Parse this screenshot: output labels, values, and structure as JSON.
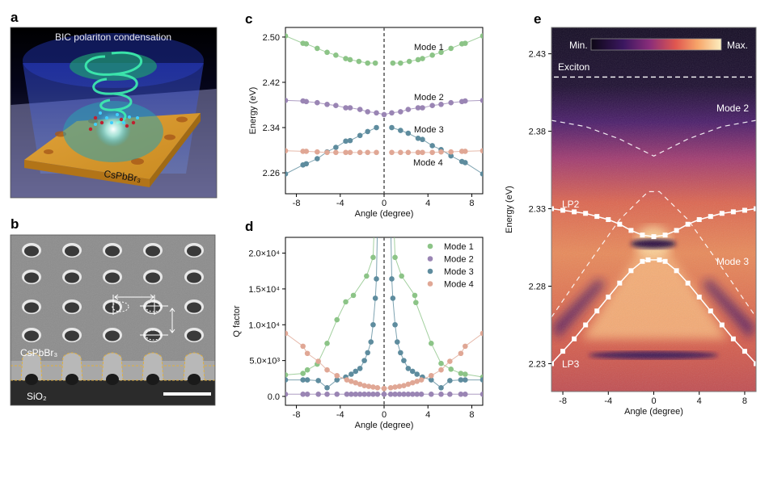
{
  "panel_labels": {
    "a": "a",
    "b": "b",
    "c": "c",
    "d": "d",
    "e": "e"
  },
  "panel_a": {
    "title": "BIC polariton condensation",
    "material": "CsPbBr₃"
  },
  "panel_b": {
    "material": "CsPbBr₃",
    "substrate": "SiO₂"
  },
  "colors": {
    "mode1": "#8cc487",
    "mode2": "#9a85b4",
    "mode3": "#5e8c9e",
    "mode4": "#e0a795"
  },
  "chart_data": [
    {
      "id": "c",
      "type": "scatter",
      "xlabel": "Angle (degree)",
      "ylabel": "Energy (eV)",
      "xlim": [
        -9,
        9
      ],
      "ylim": [
        2.223,
        2.517
      ],
      "xticks": [
        -8,
        -4,
        0,
        4,
        8
      ],
      "xtick_labels": [
        "-8",
        "-4",
        "0",
        "4",
        "8"
      ],
      "yticks": [
        2.26,
        2.34,
        2.42,
        2.5
      ],
      "ytick_labels": [
        "2.26",
        "2.34",
        "2.42",
        "2.50"
      ],
      "annotations": [
        "Mode 1",
        "Mode 2",
        "Mode 3",
        "Mode 4"
      ],
      "vline_x": 0,
      "series": [
        {
          "name": "Mode 1",
          "x": [
            -9,
            -7.4,
            -7.1,
            -6.1,
            -5.2,
            -4.4,
            -3.5,
            -3.1,
            -2.3,
            -1.5,
            -0.8,
            0.8,
            1.5,
            2.3,
            3.1,
            3.5,
            4.4,
            5.2,
            6.1,
            7.1,
            7.4,
            9
          ],
          "y": [
            2.502,
            2.489,
            2.488,
            2.48,
            2.473,
            2.468,
            2.462,
            2.46,
            2.457,
            2.454,
            2.454,
            2.454,
            2.454,
            2.457,
            2.46,
            2.462,
            2.468,
            2.473,
            2.48,
            2.488,
            2.489,
            2.502
          ]
        },
        {
          "name": "Mode 2",
          "x": [
            -9,
            -7.4,
            -7.1,
            -6.1,
            -5.2,
            -4.4,
            -3.5,
            -3.1,
            -2.2,
            -1.5,
            -0.7,
            0,
            0.7,
            1.5,
            2.2,
            3.1,
            3.5,
            4.4,
            5.2,
            6.1,
            7.1,
            7.4,
            9
          ],
          "y": [
            2.388,
            2.387,
            2.386,
            2.384,
            2.381,
            2.379,
            2.375,
            2.375,
            2.372,
            2.368,
            2.366,
            2.363,
            2.366,
            2.368,
            2.372,
            2.375,
            2.375,
            2.379,
            2.381,
            2.384,
            2.386,
            2.387,
            2.388
          ]
        },
        {
          "name": "Mode 3",
          "x": [
            -9,
            -7.4,
            -7.1,
            -6.1,
            -5.2,
            -4.4,
            -3.5,
            -3.1,
            -2.2,
            -1.5,
            -0.7,
            0.7,
            1.5,
            2.2,
            3.1,
            3.5,
            4.4,
            5.2,
            6.1,
            7.1,
            7.4,
            9
          ],
          "y": [
            2.258,
            2.274,
            2.276,
            2.285,
            2.297,
            2.305,
            2.316,
            2.317,
            2.326,
            2.333,
            2.34,
            2.34,
            2.335,
            2.33,
            2.321,
            2.319,
            2.308,
            2.301,
            2.29,
            2.28,
            2.278,
            2.258
          ]
        },
        {
          "name": "Mode 4",
          "x": [
            -9,
            -7.4,
            -7.1,
            -6.1,
            -5.2,
            -4.4,
            -3.5,
            -3.1,
            -2.2,
            -1.5,
            -0.7,
            0.7,
            1.5,
            2.2,
            3.1,
            3.5,
            4.4,
            5.2,
            6.1,
            7.1,
            7.4,
            9
          ],
          "y": [
            2.299,
            2.298,
            2.298,
            2.297,
            2.296,
            2.296,
            2.296,
            2.296,
            2.296,
            2.296,
            2.296,
            2.296,
            2.296,
            2.296,
            2.296,
            2.296,
            2.296,
            2.297,
            2.297,
            2.298,
            2.298,
            2.299
          ]
        }
      ]
    },
    {
      "id": "d",
      "type": "scatter",
      "xlabel": "Angle (degree)",
      "ylabel": "Q factor",
      "xlim": [
        -9,
        9
      ],
      "ylim": [
        -1240,
        22200
      ],
      "xticks": [
        -8,
        -4,
        0,
        4,
        8
      ],
      "xtick_labels": [
        "-8",
        "-4",
        "0",
        "4",
        "8"
      ],
      "yticks": [
        0,
        5000,
        10000,
        15000,
        20000
      ],
      "ytick_labels": [
        "0.0",
        "5.0×10³",
        "1.0×10⁴",
        "1.5×10⁴",
        "2.0×10⁴"
      ],
      "legend": {
        "position": "top-right",
        "entries": [
          "Mode 1",
          "Mode 2",
          "Mode 3",
          "Mode 4"
        ]
      },
      "vline_x": 0,
      "series": [
        {
          "name": "Mode 1",
          "x": [
            -9,
            -7.4,
            -7,
            -6.1,
            -5.2,
            -4.3,
            -3.5,
            -2.8,
            -1.6,
            -1,
            1,
            1.6,
            2.8,
            2.9,
            4.3,
            5.2,
            6.1,
            7,
            7.4,
            9
          ],
          "y": [
            3000,
            3200,
            3700,
            4500,
            7400,
            10700,
            13200,
            14100,
            16800,
            19400,
            19400,
            16800,
            14100,
            13100,
            7400,
            4600,
            3800,
            3200,
            3100,
            2700
          ]
        },
        {
          "name": "Mode 2",
          "x": [
            -9,
            -7.4,
            -7,
            -6,
            -5.2,
            -4.3,
            -3.4,
            -3,
            -2.6,
            -2.2,
            -1.8,
            -1.4,
            -1,
            -0.6,
            0,
            0.6,
            1,
            1.4,
            1.8,
            2.2,
            2.6,
            3,
            3.4,
            4.3,
            5.2,
            6,
            7,
            7.4,
            9
          ],
          "y": [
            300,
            300,
            300,
            300,
            300,
            300,
            300,
            300,
            300,
            300,
            300,
            300,
            300,
            300,
            300,
            300,
            300,
            300,
            300,
            300,
            300,
            300,
            300,
            300,
            300,
            300,
            300,
            300,
            300
          ]
        },
        {
          "name": "Mode 3",
          "x": [
            -9,
            -7.4,
            -7,
            -6,
            -5.2,
            -4.3,
            -3.5,
            -3,
            -2.6,
            -2.2,
            -1.8,
            -1.5,
            -1.2,
            -1,
            -0.8,
            -0.7,
            0.7,
            0.8,
            1,
            1.2,
            1.5,
            1.8,
            2.2,
            2.6,
            3,
            3.5,
            4.3,
            5.2,
            6,
            7,
            7.4,
            9
          ],
          "y": [
            2300,
            2300,
            2300,
            2200,
            1200,
            2300,
            2700,
            3100,
            3500,
            3900,
            5000,
            6100,
            7600,
            10000,
            13700,
            16400,
            16400,
            13700,
            10000,
            7600,
            6100,
            5000,
            3900,
            3500,
            3100,
            2700,
            2300,
            1200,
            2200,
            2300,
            2300,
            2300
          ]
        },
        {
          "name": "Mode 4",
          "x": [
            -9,
            -7.4,
            -7,
            -6,
            -5.2,
            -4.3,
            -3.4,
            -3,
            -2.6,
            -2.2,
            -1.8,
            -1.4,
            -1,
            -0.6,
            0,
            0.6,
            1,
            1.4,
            1.8,
            2.2,
            2.6,
            3,
            3.4,
            4.3,
            5.2,
            6,
            7,
            7.4,
            9
          ],
          "y": [
            8800,
            7000,
            6000,
            4900,
            3700,
            2900,
            2300,
            2100,
            1900,
            1700,
            1500,
            1400,
            1300,
            1200,
            1100,
            1200,
            1300,
            1400,
            1500,
            1700,
            1900,
            2100,
            2300,
            2900,
            3700,
            4900,
            6000,
            7000,
            8800
          ]
        }
      ]
    },
    {
      "id": "e",
      "type": "heatmap",
      "xlabel": "Angle (degree)",
      "ylabel": "Energy (eV)",
      "xlim": [
        -9,
        9
      ],
      "ylim": [
        2.212,
        2.447
      ],
      "xticks": [
        -8,
        -4,
        0,
        4,
        8
      ],
      "xtick_labels": [
        "-8",
        "-4",
        "0",
        "4",
        "8"
      ],
      "yticks": [
        2.23,
        2.28,
        2.33,
        2.38,
        2.43
      ],
      "ytick_labels": [
        "2.23",
        "2.28",
        "2.33",
        "2.38",
        "2.43"
      ],
      "colorbar": {
        "min_label": "Min.",
        "max_label": "Max.",
        "colors": [
          "#0d0716",
          "#3b1760",
          "#8a2d7a",
          "#e0574f",
          "#f7a66a",
          "#fcefc0"
        ]
      },
      "annotations": {
        "exciton": "Exciton",
        "mode2": "Mode 2",
        "mode3": "Mode 3",
        "lp2": "LP2",
        "lp3": "LP3"
      },
      "exciton_energy": 2.415,
      "dashed_mode2": {
        "x": [
          -9,
          -6,
          -3,
          0,
          3,
          6,
          9
        ],
        "y": [
          2.387,
          2.383,
          2.375,
          2.364,
          2.375,
          2.383,
          2.387
        ]
      },
      "dashed_mode3": {
        "x": [
          -9,
          -6,
          -3,
          -0.5,
          0.5,
          3,
          6,
          9
        ],
        "y": [
          2.26,
          2.292,
          2.323,
          2.341,
          2.341,
          2.323,
          2.292,
          2.26
        ]
      },
      "series": [
        {
          "name": "LP2",
          "x": [
            -9,
            -8,
            -7,
            -6,
            -5,
            -4,
            -3,
            -2,
            -1,
            0,
            1,
            2,
            3,
            4,
            5,
            6,
            7,
            8,
            9
          ],
          "y": [
            2.33,
            2.329,
            2.328,
            2.327,
            2.325,
            2.323,
            2.32,
            2.316,
            2.313,
            2.312,
            2.313,
            2.316,
            2.32,
            2.323,
            2.325,
            2.327,
            2.328,
            2.329,
            2.33
          ]
        },
        {
          "name": "LP3",
          "x": [
            -9,
            -8,
            -7,
            -6,
            -5,
            -4,
            -3,
            -2,
            -1,
            -0.5,
            0.5,
            1,
            2,
            3,
            4,
            5,
            6,
            7,
            8,
            9
          ],
          "y": [
            2.23,
            2.238,
            2.246,
            2.255,
            2.264,
            2.273,
            2.282,
            2.29,
            2.296,
            2.297,
            2.297,
            2.296,
            2.29,
            2.282,
            2.273,
            2.264,
            2.255,
            2.246,
            2.238,
            2.23
          ]
        }
      ]
    }
  ]
}
